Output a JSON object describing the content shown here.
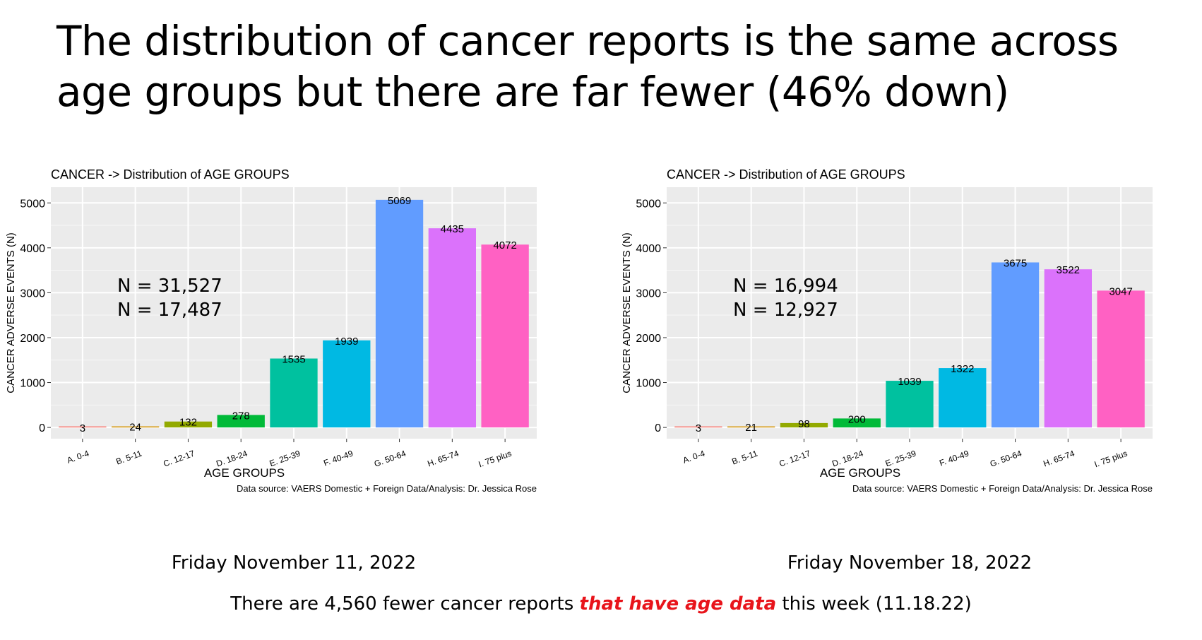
{
  "slide": {
    "title": "The distribution of cancer reports is the same across age groups but there are far fewer (46% down)",
    "left_date": "Friday November 11, 2022",
    "right_date": "Friday November 18, 2022",
    "footer_before": "There are 4,560 fewer cancer reports ",
    "footer_emphasis": "that have age data",
    "footer_after": " this week (11.18.22)",
    "emphasis_color": "#e8141b"
  },
  "chart_data": [
    {
      "type": "bar",
      "title": "CANCER -> Distribution of AGE GROUPS",
      "xlabel": "AGE GROUPS",
      "ylabel": "CANCER ADVERSE EVENTS (N)",
      "caption": "Data source: VAERS Domestic + Foreign Data/Analysis: Dr. Jessica Rose",
      "categories": [
        "A. 0-4",
        "B. 5-11",
        "C. 12-17",
        "D. 18-24",
        "E. 25-39",
        "F. 40-49",
        "G. 50-64",
        "H. 65-74",
        "I. 75 plus"
      ],
      "values": [
        3,
        24,
        132,
        278,
        1535,
        1939,
        5069,
        4435,
        4072
      ],
      "colors": [
        "#F8766D",
        "#D39200",
        "#93AA00",
        "#00BA38",
        "#00C19F",
        "#00B9E3",
        "#619CFF",
        "#DB72FB",
        "#FF61C3"
      ],
      "annotations": [
        "N = 31,527",
        "N = 17,487"
      ],
      "ylim": [
        -250,
        5350
      ],
      "yticks": [
        0,
        1000,
        2000,
        3000,
        4000,
        5000
      ],
      "grid": true,
      "legend": "none"
    },
    {
      "type": "bar",
      "title": "CANCER -> Distribution of AGE GROUPS",
      "xlabel": "AGE GROUPS",
      "ylabel": "CANCER ADVERSE EVENTS (N)",
      "caption": "Data source: VAERS Domestic + Foreign Data/Analysis: Dr. Jessica Rose",
      "categories": [
        "A. 0-4",
        "B. 5-11",
        "C. 12-17",
        "D. 18-24",
        "E. 25-39",
        "F. 40-49",
        "G. 50-64",
        "H. 65-74",
        "I. 75 plus"
      ],
      "values": [
        3,
        21,
        98,
        200,
        1039,
        1322,
        3675,
        3522,
        3047
      ],
      "colors": [
        "#F8766D",
        "#D39200",
        "#93AA00",
        "#00BA38",
        "#00C19F",
        "#00B9E3",
        "#619CFF",
        "#DB72FB",
        "#FF61C3"
      ],
      "annotations": [
        "N = 16,994",
        "N = 12,927"
      ],
      "ylim": [
        -250,
        5350
      ],
      "yticks": [
        0,
        1000,
        2000,
        3000,
        4000,
        5000
      ],
      "grid": true,
      "legend": "none"
    }
  ]
}
